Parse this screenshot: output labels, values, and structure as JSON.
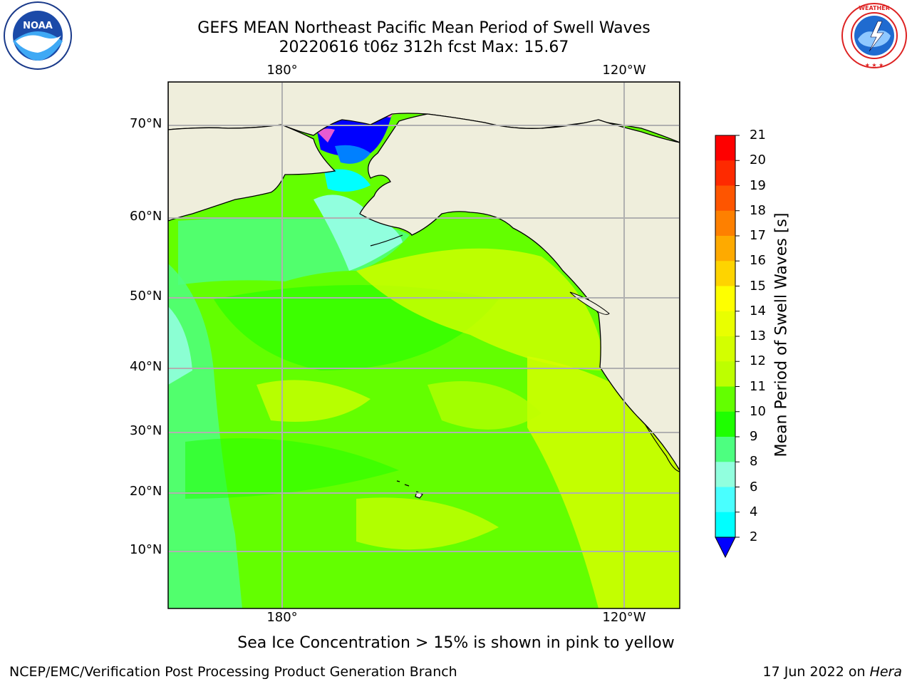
{
  "title_line1": "GEFS MEAN Northeast Pacific Mean Period of Swell Waves",
  "title_line2": "20220616 t06z 312h fcst   Max: 15.67",
  "map": {
    "lat_labels": [
      "70°N",
      "60°N",
      "50°N",
      "40°N",
      "30°N",
      "20°N",
      "10°N"
    ],
    "lon_labels_top": [
      "180°",
      "120°W"
    ],
    "lon_labels_bottom": [
      "180°",
      "120°W"
    ],
    "land_color": "#efeedc",
    "grid_color": "#b0b0b0"
  },
  "colorbar": {
    "title": "Mean Period of Swell Waves [s]",
    "levels": [
      "21",
      "20",
      "19",
      "18",
      "17",
      "16",
      "15",
      "14",
      "13",
      "12",
      "11",
      "10",
      "9",
      "8",
      "6",
      "4",
      "2"
    ],
    "colors": [
      "#fe0000",
      "#fe2a00",
      "#fe5500",
      "#fe8000",
      "#feaa00",
      "#fed400",
      "#feff00",
      "#e9ff00",
      "#d3ff00",
      "#bdff00",
      "#63ff00",
      "#1eff00",
      "#4dff80",
      "#91ffde",
      "#49ffff",
      "#00ffff",
      "#0080ff"
    ],
    "under_color": "#0000ff"
  },
  "note": "Sea Ice Concentration > 15% is shown in pink to yellow",
  "footer_left": "NCEP/EMC/Verification Post Processing Product Generation Branch",
  "footer_right_prefix": "17 Jun 2022 on ",
  "footer_right_host": "Hera"
}
